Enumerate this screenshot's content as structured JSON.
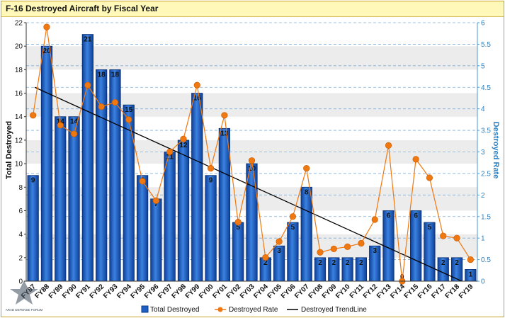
{
  "chart_data": {
    "type": "bar",
    "title": "F-16 Destroyed Aircraft by Fiscal Year",
    "ylabel": "Total Destroyed",
    "y2label": "Destroyed Rate",
    "ylim": [
      0,
      22
    ],
    "y2lim": [
      0,
      6
    ],
    "yticks": [
      "0",
      "2",
      "4",
      "6",
      "8",
      "10",
      "12",
      "14",
      "16",
      "18",
      "20",
      "22"
    ],
    "y2ticks": [
      "0",
      "0.5",
      "1",
      "1.5",
      "2",
      "2.5",
      "3",
      "3.5",
      "4",
      "4.5",
      "5",
      "5.5",
      "6"
    ],
    "categories": [
      "FY87",
      "FY88",
      "FY89",
      "FY90",
      "FY91",
      "FY92",
      "FY93",
      "FY94",
      "FY95",
      "FY96",
      "FY97",
      "FY98",
      "FY99",
      "FY00",
      "FY01",
      "FY02",
      "FY03",
      "FY04",
      "FY05",
      "FY06",
      "FY07",
      "FY08",
      "FY09",
      "FY10",
      "FY11",
      "FY12",
      "FY13",
      "FY14",
      "FY15",
      "FY16",
      "FY17",
      "FY18",
      "FY19"
    ],
    "series": [
      {
        "name": "Total Destroyed",
        "kind": "bar",
        "values": [
          9,
          20,
          14,
          14,
          21,
          18,
          18,
          15,
          9,
          7,
          11,
          12,
          16,
          9,
          13,
          5,
          10,
          2,
          3,
          5,
          8,
          2,
          2,
          2,
          2,
          3,
          6,
          0,
          6,
          5,
          2,
          2,
          1
        ],
        "labels": [
          "9",
          "20",
          "14",
          "14",
          "21",
          "18",
          "18",
          "15",
          "9",
          "7",
          "11",
          "12",
          "16",
          "9",
          "13",
          "5",
          "10",
          "2",
          "3",
          "5",
          "8",
          "2",
          "2",
          "2",
          "2",
          "3",
          "6",
          "0",
          "6",
          "5",
          "2",
          "2",
          "1"
        ]
      },
      {
        "name": "Destroyed Rate",
        "kind": "line",
        "axis": "right",
        "values": [
          3.85,
          5.9,
          3.62,
          3.42,
          4.55,
          4.05,
          4.15,
          3.75,
          2.32,
          1.87,
          3.0,
          3.3,
          4.55,
          2.62,
          3.85,
          1.37,
          2.8,
          0.55,
          0.92,
          1.5,
          2.62,
          0.67,
          0.75,
          0.8,
          0.88,
          1.43,
          3.15,
          0.0,
          2.83,
          2.4,
          1.05,
          1.0,
          0.5
        ]
      },
      {
        "name": "Destroyed TrendLine",
        "kind": "trend",
        "from": 16.5,
        "to": 0
      }
    ],
    "colors": {
      "bar": "#1f5fc4",
      "rate": "#f07810",
      "trend": "#000000",
      "grid": "#7fb0dc",
      "band": "#ececec"
    },
    "grid": true,
    "legend_position": "bottom"
  },
  "watermark": "ARAB DEFENSE FORUM"
}
